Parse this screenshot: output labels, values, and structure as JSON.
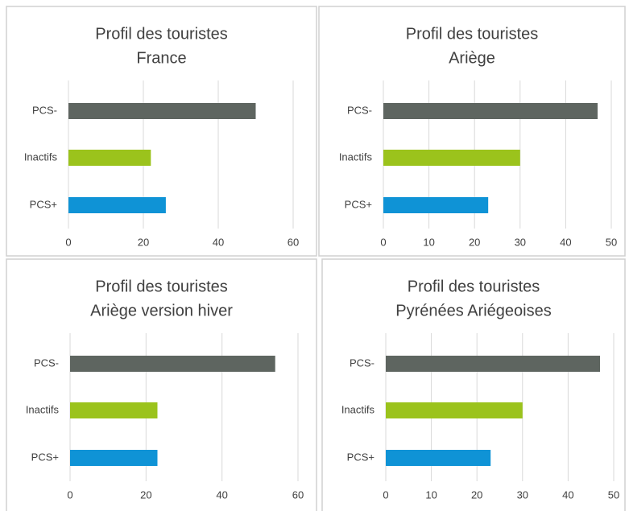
{
  "chart_data": [
    {
      "type": "bar",
      "orientation": "horizontal",
      "title": "Profil des touristes",
      "subtitle": "France",
      "categories": [
        "PCS-",
        "Inactifs",
        "PCS+"
      ],
      "values": [
        50,
        22,
        26
      ],
      "colors": [
        "#5e6560",
        "#9bc31c",
        "#0f93d6"
      ],
      "xlim": [
        0,
        60
      ],
      "xticks": [
        0,
        20,
        40,
        60
      ],
      "grid": true
    },
    {
      "type": "bar",
      "orientation": "horizontal",
      "title": "Profil des touristes",
      "subtitle": "Ariège",
      "categories": [
        "PCS-",
        "Inactifs",
        "PCS+"
      ],
      "values": [
        47,
        30,
        23
      ],
      "colors": [
        "#5e6560",
        "#9bc31c",
        "#0f93d6"
      ],
      "xlim": [
        0,
        50
      ],
      "xticks": [
        0,
        10,
        20,
        30,
        40,
        50
      ],
      "grid": true
    },
    {
      "type": "bar",
      "orientation": "horizontal",
      "title": "Profil des touristes",
      "subtitle": "Ariège version hiver",
      "categories": [
        "PCS-",
        "Inactifs",
        "PCS+"
      ],
      "values": [
        54,
        23,
        23
      ],
      "colors": [
        "#5e6560",
        "#9bc31c",
        "#0f93d6"
      ],
      "xlim": [
        0,
        60
      ],
      "xticks": [
        0,
        20,
        40,
        60
      ],
      "grid": true
    },
    {
      "type": "bar",
      "orientation": "horizontal",
      "title": "Profil des touristes",
      "subtitle": "Pyrénées Ariégeoises",
      "categories": [
        "PCS-",
        "Inactifs",
        "PCS+"
      ],
      "values": [
        47,
        30,
        23
      ],
      "colors": [
        "#5e6560",
        "#9bc31c",
        "#0f93d6"
      ],
      "xlim": [
        0,
        50
      ],
      "xticks": [
        0,
        10,
        20,
        30,
        40,
        50
      ],
      "grid": true
    }
  ]
}
